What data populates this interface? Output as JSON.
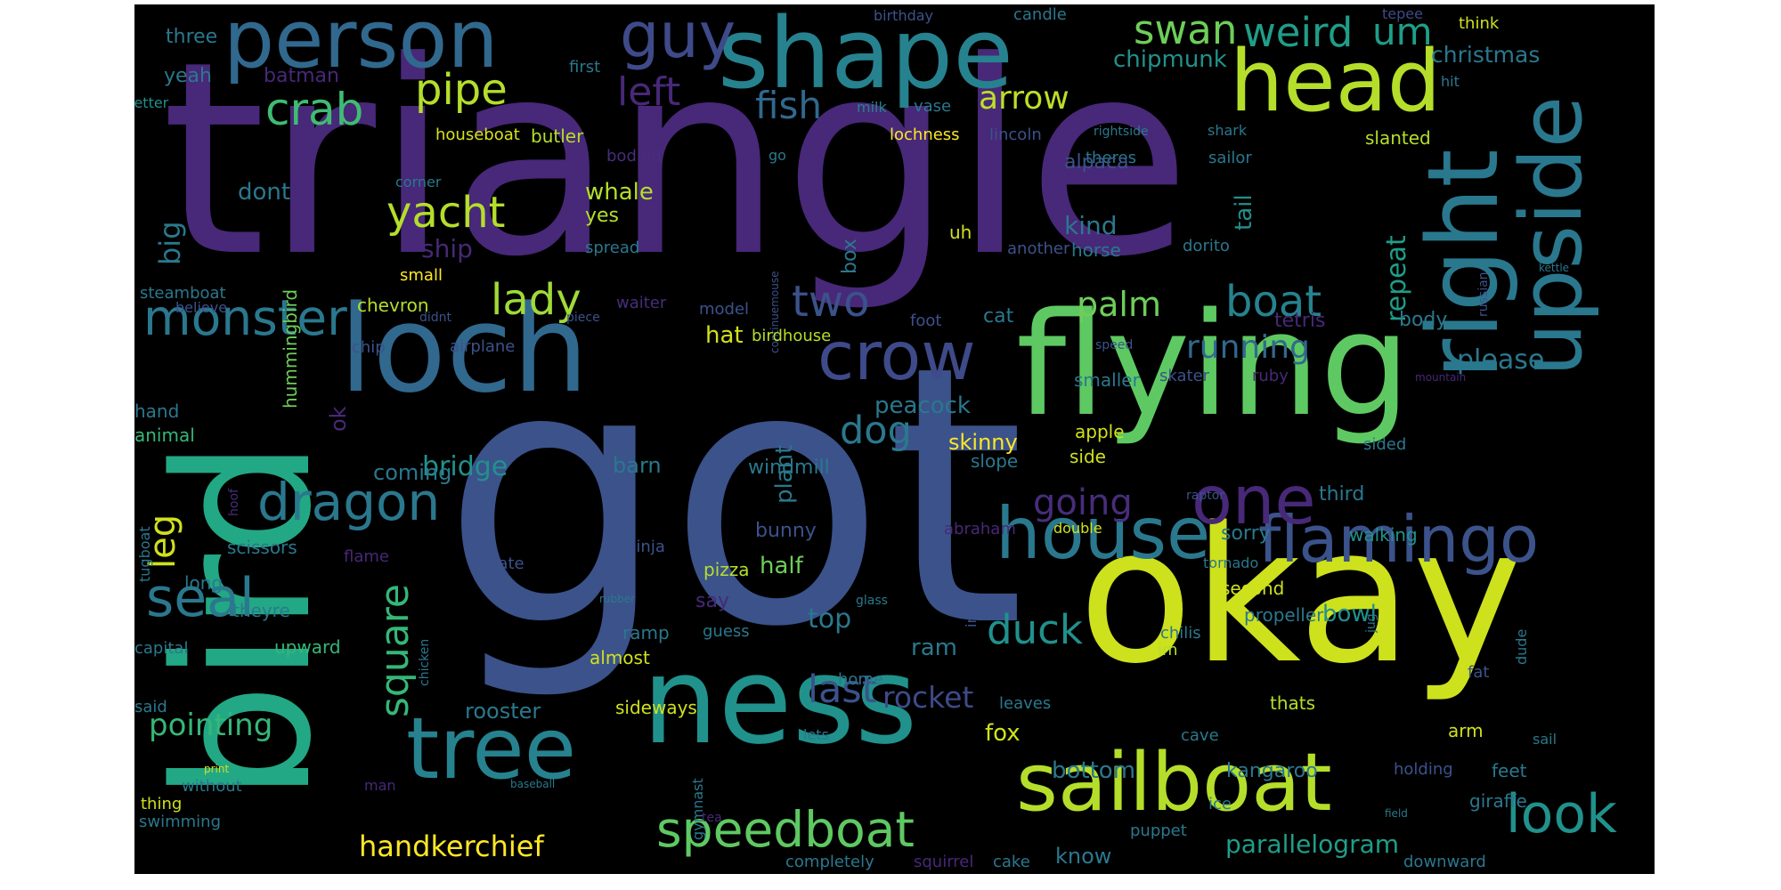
{
  "words": [
    {
      "text": "got",
      "color": "#3b528b"
    },
    {
      "text": "triangle",
      "color": "#482878"
    },
    {
      "text": "bird",
      "color": "#22a884"
    },
    {
      "text": "okay",
      "color": "#cde11d"
    },
    {
      "text": "flying",
      "color": "#5ec962"
    },
    {
      "text": "loch",
      "color": "#31688e"
    },
    {
      "text": "ness",
      "color": "#21918c"
    },
    {
      "text": "shape",
      "color": "#26828e"
    },
    {
      "text": "person",
      "color": "#31688e"
    },
    {
      "text": "guy",
      "color": "#3e4a89"
    },
    {
      "text": "head",
      "color": "#b5de2b"
    },
    {
      "text": "right",
      "color": "#2a788e"
    },
    {
      "text": "upside",
      "color": "#2a788e"
    },
    {
      "text": "sailboat",
      "color": "#b5de2b"
    },
    {
      "text": "tree",
      "color": "#26828e"
    },
    {
      "text": "house",
      "color": "#2a788e"
    },
    {
      "text": "flamingo",
      "color": "#3b528b"
    },
    {
      "text": "crow",
      "color": "#3e4a89"
    },
    {
      "text": "one",
      "color": "#482878"
    },
    {
      "text": "speedboat",
      "color": "#5ec962"
    },
    {
      "text": "look",
      "color": "#21918c"
    },
    {
      "text": "dragon",
      "color": "#2a788e"
    },
    {
      "text": "monster",
      "color": "#2a788e"
    },
    {
      "text": "seal",
      "color": "#2a788e"
    },
    {
      "text": "crab",
      "color": "#3fbc73"
    },
    {
      "text": "swan",
      "color": "#6ece58"
    },
    {
      "text": "weird",
      "color": "#1f9e89"
    },
    {
      "text": "um",
      "color": "#1f9e89"
    },
    {
      "text": "pipe",
      "color": "#b5de2b"
    },
    {
      "text": "left",
      "color": "#482878"
    },
    {
      "text": "yacht",
      "color": "#b5de2b"
    },
    {
      "text": "fish",
      "color": "#31688e"
    },
    {
      "text": "arrow",
      "color": "#bddf26"
    },
    {
      "text": "lady",
      "color": "#a0da39"
    },
    {
      "text": "two",
      "color": "#3b528b"
    },
    {
      "text": "boat",
      "color": "#26828e"
    },
    {
      "text": "palm",
      "color": "#6ece58"
    },
    {
      "text": "running",
      "color": "#31688e"
    },
    {
      "text": "going",
      "color": "#472d7b"
    },
    {
      "text": "dog",
      "color": "#2a788e"
    },
    {
      "text": "square",
      "color": "#35b779"
    },
    {
      "text": "handkerchief",
      "color": "#fde725"
    },
    {
      "text": "parallelogram",
      "color": "#1f9e89"
    },
    {
      "text": "duck",
      "color": "#21918c"
    },
    {
      "text": "last",
      "color": "#3b528b"
    },
    {
      "text": "rocket",
      "color": "#3e4a89"
    },
    {
      "text": "pointing",
      "color": "#35b779"
    },
    {
      "text": "leg",
      "color": "#d0e11c"
    },
    {
      "text": "big",
      "color": "#2a788e"
    },
    {
      "text": "repeat",
      "color": "#1f9e89"
    },
    {
      "text": "please",
      "color": "#2a788e"
    },
    {
      "text": "christmas",
      "color": "#2a788e"
    },
    {
      "text": "chipmunk",
      "color": "#21918c"
    },
    {
      "text": "three",
      "color": "#2a788e"
    },
    {
      "text": "yeah",
      "color": "#2a788e"
    },
    {
      "text": "batman",
      "color": "#482878"
    },
    {
      "text": "birthday",
      "color": "#3b528b"
    },
    {
      "text": "candle",
      "color": "#2a788e"
    },
    {
      "text": "tepee",
      "color": "#3e4a89"
    },
    {
      "text": "think",
      "color": "#d0e11c"
    },
    {
      "text": "first",
      "color": "#2a788e"
    },
    {
      "text": "letter",
      "color": "#21918c"
    },
    {
      "text": "milk",
      "color": "#26828e"
    },
    {
      "text": "vase",
      "color": "#2a788e"
    },
    {
      "text": "hit",
      "color": "#2a788e"
    },
    {
      "text": "houseboat",
      "color": "#d8e219"
    },
    {
      "text": "butler",
      "color": "#b5de2b"
    },
    {
      "text": "lochness",
      "color": "#fde725"
    },
    {
      "text": "lincoln",
      "color": "#3b528b"
    },
    {
      "text": "rightside",
      "color": "#2a788e"
    },
    {
      "text": "shark",
      "color": "#2a788e"
    },
    {
      "text": "slanted",
      "color": "#b5de2b"
    },
    {
      "text": "bodied",
      "color": "#472d7b"
    },
    {
      "text": "go",
      "color": "#2a788e"
    },
    {
      "text": "theres",
      "color": "#2a788e"
    },
    {
      "text": "sailor",
      "color": "#2a788e"
    },
    {
      "text": "corner",
      "color": "#2a788e"
    },
    {
      "text": "alpaca",
      "color": "#3b528b"
    },
    {
      "text": "tail",
      "color": "#21918c"
    },
    {
      "text": "dont",
      "color": "#2a788e"
    },
    {
      "text": "whale",
      "color": "#b5de2b"
    },
    {
      "text": "yes",
      "color": "#b5de2b"
    },
    {
      "text": "kind",
      "color": "#2a788e"
    },
    {
      "text": "ship",
      "color": "#482878"
    },
    {
      "text": "uh",
      "color": "#d0e11c"
    },
    {
      "text": "another",
      "color": "#3b528b"
    },
    {
      "text": "horse",
      "color": "#2a788e"
    },
    {
      "text": "dorito",
      "color": "#2a788e"
    },
    {
      "text": "spread",
      "color": "#2a788e"
    },
    {
      "text": "box",
      "color": "#2a788e"
    },
    {
      "text": "russian",
      "color": "#3b528b"
    },
    {
      "text": "hummingbird",
      "color": "#6ece58"
    },
    {
      "text": "continuemouse",
      "color": "#3b528b"
    },
    {
      "text": "small",
      "color": "#fde725"
    },
    {
      "text": "kettle",
      "color": "#2a788e"
    },
    {
      "text": "steamboat",
      "color": "#2a788e"
    },
    {
      "text": "believe",
      "color": "#3b528b"
    },
    {
      "text": "chevron",
      "color": "#b5de2b"
    },
    {
      "text": "waiter",
      "color": "#472d7b"
    },
    {
      "text": "didnt",
      "color": "#3b528b"
    },
    {
      "text": "piece",
      "color": "#3b528b"
    },
    {
      "text": "model",
      "color": "#3b528b"
    },
    {
      "text": "cat",
      "color": "#2a788e"
    },
    {
      "text": "foot",
      "color": "#3b528b"
    },
    {
      "text": "tetris",
      "color": "#482878"
    },
    {
      "text": "body",
      "color": "#2a788e"
    },
    {
      "text": "hat",
      "color": "#d0e11c"
    },
    {
      "text": "birdhouse",
      "color": "#b5de2b"
    },
    {
      "text": "chip",
      "color": "#3b528b"
    },
    {
      "text": "airplane",
      "color": "#3b528b"
    },
    {
      "text": "speed",
      "color": "#3b528b"
    },
    {
      "text": "skater",
      "color": "#3b528b"
    },
    {
      "text": "ruby",
      "color": "#482878"
    },
    {
      "text": "smaller",
      "color": "#2a788e"
    },
    {
      "text": "mountain",
      "color": "#482878"
    },
    {
      "text": "ok",
      "color": "#482878"
    },
    {
      "text": "peacock",
      "color": "#2a788e"
    },
    {
      "text": "plant",
      "color": "#2a788e"
    },
    {
      "text": "hand",
      "color": "#2a788e"
    },
    {
      "text": "animal",
      "color": "#35b779"
    },
    {
      "text": "skinny",
      "color": "#fde725"
    },
    {
      "text": "apple",
      "color": "#d0e11c"
    },
    {
      "text": "slope",
      "color": "#2a788e"
    },
    {
      "text": "side",
      "color": "#d0e11c"
    },
    {
      "text": "sided",
      "color": "#2a788e"
    },
    {
      "text": "bridge",
      "color": "#21918c"
    },
    {
      "text": "barn",
      "color": "#2a788e"
    },
    {
      "text": "windmill",
      "color": "#2a788e"
    },
    {
      "text": "coming",
      "color": "#2a788e"
    },
    {
      "text": "hoof",
      "color": "#472d7b"
    },
    {
      "text": "raptor",
      "color": "#3b528b"
    },
    {
      "text": "third",
      "color": "#2a788e"
    },
    {
      "text": "tugboat",
      "color": "#2a788e"
    },
    {
      "text": "bunny",
      "color": "#3b528b"
    },
    {
      "text": "abraham",
      "color": "#482878"
    },
    {
      "text": "double",
      "color": "#d0e11c"
    },
    {
      "text": "sorry",
      "color": "#2a788e"
    },
    {
      "text": "walking",
      "color": "#21918c"
    },
    {
      "text": "scissors",
      "color": "#2a788e"
    },
    {
      "text": "ninja",
      "color": "#3b528b"
    },
    {
      "text": "flame",
      "color": "#482878"
    },
    {
      "text": "half",
      "color": "#6ece58"
    },
    {
      "text": "plate",
      "color": "#3b528b"
    },
    {
      "text": "pizza",
      "color": "#b5de2b"
    },
    {
      "text": "tornado",
      "color": "#2a788e"
    },
    {
      "text": "long",
      "color": "#2a788e"
    },
    {
      "text": "say",
      "color": "#482878"
    },
    {
      "text": "rubber",
      "color": "#2a788e"
    },
    {
      "text": "glass",
      "color": "#2a788e"
    },
    {
      "text": "iron",
      "color": "#3b528b"
    },
    {
      "text": "second",
      "color": "#d0e11c"
    },
    {
      "text": "bowl",
      "color": "#21918c"
    },
    {
      "text": "theyre",
      "color": "#2a788e"
    },
    {
      "text": "top",
      "color": "#2a788e"
    },
    {
      "text": "ramp",
      "color": "#2a788e"
    },
    {
      "text": "guess",
      "color": "#2a788e"
    },
    {
      "text": "propeller",
      "color": "#2a788e"
    },
    {
      "text": "chilis",
      "color": "#2a788e"
    },
    {
      "text": "im",
      "color": "#b5de2b"
    },
    {
      "text": "jug",
      "color": "#2a788e"
    },
    {
      "text": "capital",
      "color": "#2a788e"
    },
    {
      "text": "upward",
      "color": "#35b779"
    },
    {
      "text": "chicken",
      "color": "#2a788e"
    },
    {
      "text": "almost",
      "color": "#d0e11c"
    },
    {
      "text": "ram",
      "color": "#2a788e"
    },
    {
      "text": "home",
      "color": "#2a788e"
    },
    {
      "text": "dude",
      "color": "#2a788e"
    },
    {
      "text": "fat",
      "color": "#3b528b"
    },
    {
      "text": "said",
      "color": "#2a788e"
    },
    {
      "text": "sideways",
      "color": "#d0e11c"
    },
    {
      "text": "rooster",
      "color": "#2a788e"
    },
    {
      "text": "leaves",
      "color": "#2a788e"
    },
    {
      "text": "thats",
      "color": "#b5de2b"
    },
    {
      "text": "fox",
      "color": "#d0e11c"
    },
    {
      "text": "lets",
      "color": "#2a788e"
    },
    {
      "text": "cave",
      "color": "#2a788e"
    },
    {
      "text": "arm",
      "color": "#d0e11c"
    },
    {
      "text": "sail",
      "color": "#2a788e"
    },
    {
      "text": "print",
      "color": "#d0e11c"
    },
    {
      "text": "without",
      "color": "#2a788e"
    },
    {
      "text": "thing",
      "color": "#d0e11c"
    },
    {
      "text": "swimming",
      "color": "#2a788e"
    },
    {
      "text": "man",
      "color": "#482878"
    },
    {
      "text": "baseball",
      "color": "#2a788e"
    },
    {
      "text": "gymnast",
      "color": "#2a788e"
    },
    {
      "text": "bottom",
      "color": "#2a788e"
    },
    {
      "text": "kangaroo",
      "color": "#2a788e"
    },
    {
      "text": "holding",
      "color": "#3b528b"
    },
    {
      "text": "feet",
      "color": "#2a788e"
    },
    {
      "text": "giraffe",
      "color": "#2a788e"
    },
    {
      "text": "ice",
      "color": "#2a788e"
    },
    {
      "text": "field",
      "color": "#2a788e"
    },
    {
      "text": "tea",
      "color": "#482878"
    },
    {
      "text": "completely",
      "color": "#2a788e"
    },
    {
      "text": "squirrel",
      "color": "#482878"
    },
    {
      "text": "cake",
      "color": "#2a788e"
    },
    {
      "text": "know",
      "color": "#2a788e"
    },
    {
      "text": "puppet",
      "color": "#2a788e"
    },
    {
      "text": "downward",
      "color": "#2a788e"
    }
  ]
}
